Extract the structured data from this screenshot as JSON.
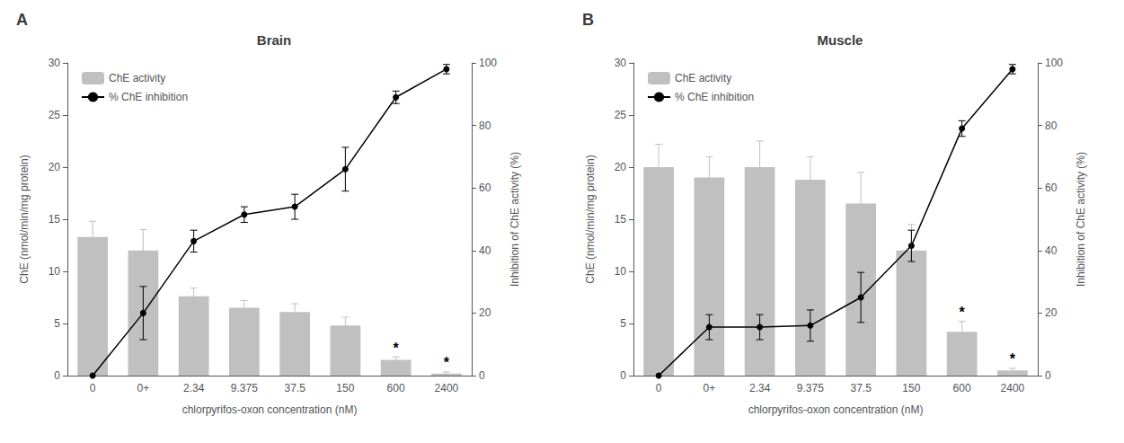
{
  "chart_data": [
    {
      "type": "bar",
      "title": "Brain",
      "panel_label": "A",
      "categories": [
        "0",
        "0+",
        "2.34",
        "9.375",
        "37.5",
        "150",
        "600",
        "2400"
      ],
      "xlabel": "chlorpyrifos-oxon concentration (nM)",
      "ylabel": "ChE (nmol/min/mg protein)",
      "y2label": "Inhibition of ChE activity (%)",
      "series": [
        {
          "name": "ChE activity",
          "type": "bar",
          "color": "#c0c0c0",
          "values": [
            13.3,
            12.0,
            7.6,
            6.5,
            6.1,
            4.8,
            1.5,
            0.2
          ],
          "errors": [
            1.5,
            2.0,
            0.8,
            0.7,
            0.8,
            0.8,
            0.3,
            0.15
          ]
        },
        {
          "name": "% ChE inhibition",
          "type": "line",
          "axis": "y2",
          "color": "#000000",
          "marker": "circle",
          "values": [
            0.0,
            20.0,
            43.0,
            51.5,
            54.0,
            66.0,
            89.0,
            98.0
          ],
          "errors": [
            0.0,
            8.5,
            3.5,
            2.5,
            4.0,
            7.0,
            2.0,
            1.5
          ]
        }
      ],
      "annotations": [
        {
          "category": "600",
          "text": "*"
        },
        {
          "category": "2400",
          "text": "*"
        }
      ],
      "ylim": [
        0,
        30
      ],
      "yticks": [
        0,
        5,
        10,
        15,
        20,
        25,
        30
      ],
      "y2lim": [
        0,
        100
      ],
      "y2ticks": [
        0,
        20,
        40,
        60,
        80,
        100
      ],
      "grid": false,
      "legend": "upper left"
    },
    {
      "type": "bar",
      "title": "Muscle",
      "panel_label": "B",
      "categories": [
        "0",
        "0+",
        "2.34",
        "9.375",
        "37.5",
        "150",
        "600",
        "2400"
      ],
      "xlabel": "chlorpyrifos-oxon concentration (nM)",
      "ylabel": "ChE (nmol/min/mg protein)",
      "y2label": "Inhibition of ChE activity (%)",
      "series": [
        {
          "name": "ChE activity",
          "type": "bar",
          "color": "#c0c0c0",
          "values": [
            20.0,
            19.0,
            20.0,
            18.8,
            16.5,
            12.0,
            4.2,
            0.5
          ],
          "errors": [
            2.2,
            2.0,
            2.5,
            2.2,
            3.0,
            2.5,
            1.0,
            0.2
          ]
        },
        {
          "name": "% ChE inhibition",
          "type": "line",
          "axis": "y2",
          "color": "#000000",
          "marker": "circle",
          "values": [
            0.0,
            15.5,
            15.5,
            16.0,
            25.0,
            41.5,
            79.0,
            98.0
          ],
          "errors": [
            0.0,
            4.0,
            4.0,
            5.0,
            8.0,
            5.0,
            2.5,
            1.5
          ]
        }
      ],
      "annotations": [
        {
          "category": "600",
          "text": "*"
        },
        {
          "category": "2400",
          "text": "*"
        }
      ],
      "ylim": [
        0,
        30
      ],
      "yticks": [
        0,
        5,
        10,
        15,
        20,
        25,
        30
      ],
      "y2lim": [
        0,
        100
      ],
      "y2ticks": [
        0,
        20,
        40,
        60,
        80,
        100
      ],
      "grid": false,
      "legend": "upper left"
    }
  ]
}
